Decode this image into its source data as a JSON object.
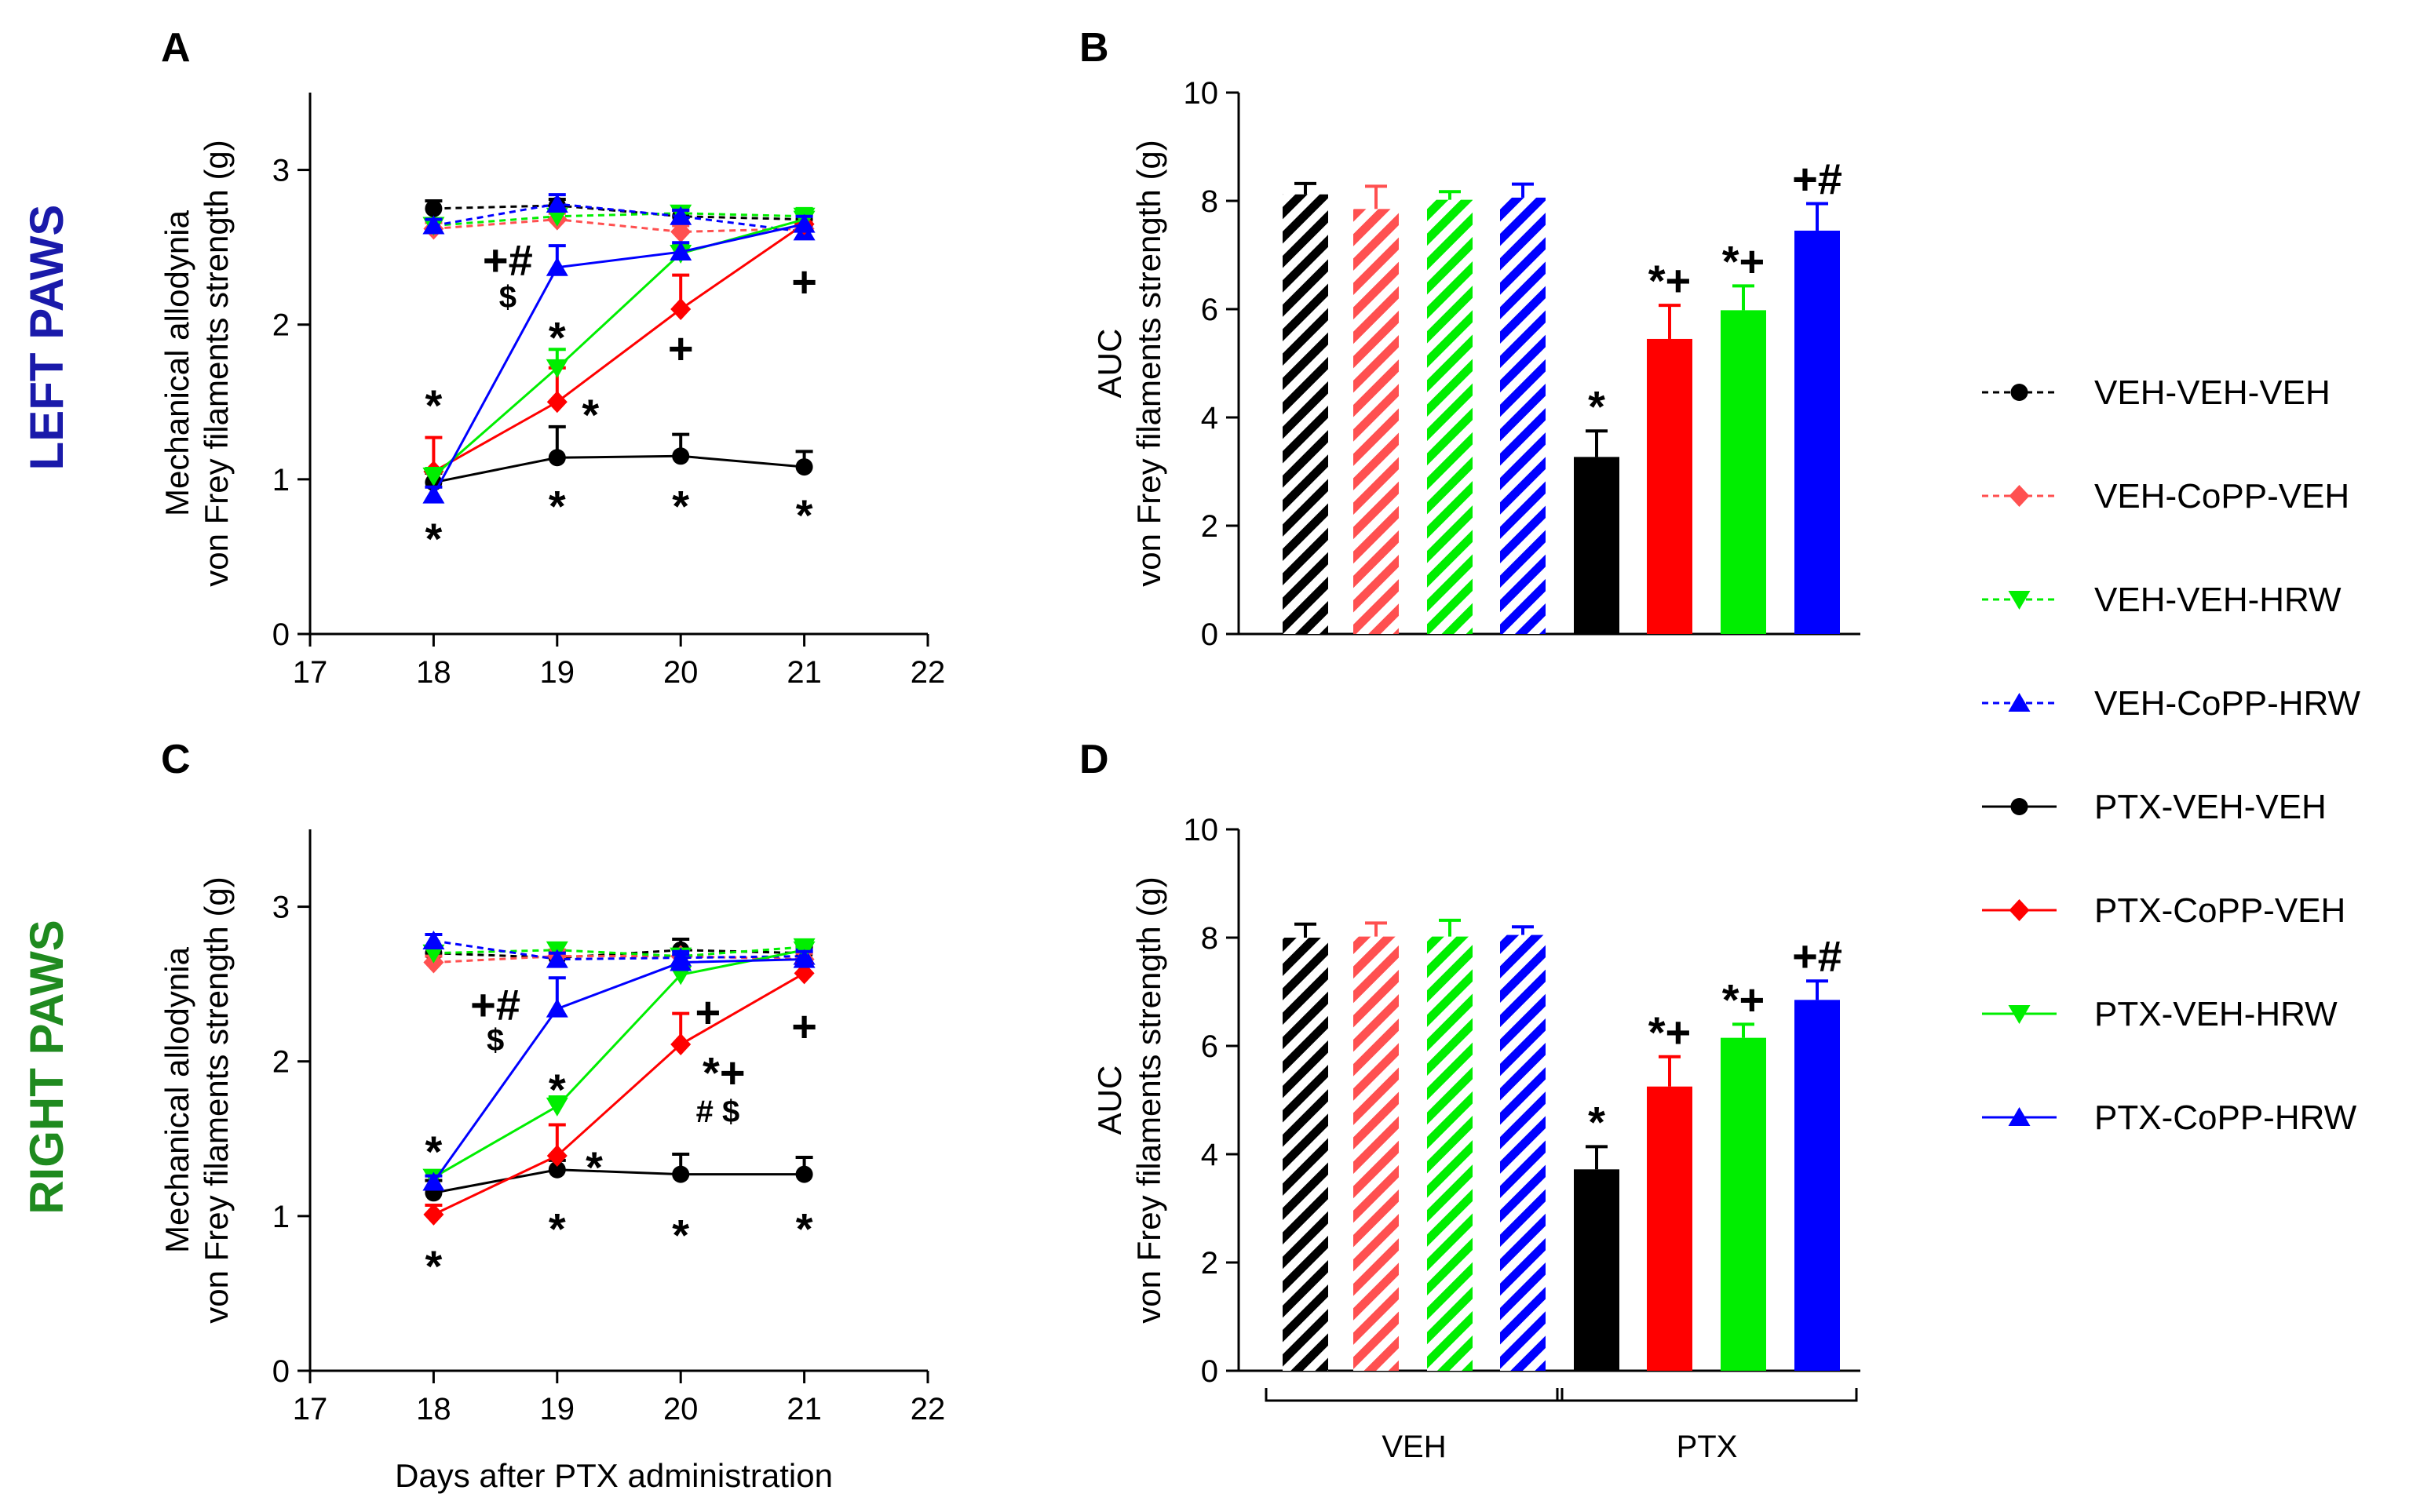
{
  "side_labels": {
    "top": "LEFT PAWS",
    "bottom": "RIGHT PAWS"
  },
  "colors": {
    "black": "#000000",
    "red": "#ff0000",
    "green": "#00ee00",
    "blue": "#0000ff",
    "red_light": "#ff5050",
    "left_label": "#1a1aaa",
    "right_label": "#1f8a1f"
  },
  "legend": [
    {
      "label": "VEH-VEH-VEH",
      "color": "#000000",
      "marker": "circle",
      "dashed": true
    },
    {
      "label": "VEH-CoPP-VEH",
      "color": "#ff5050",
      "marker": "diamond",
      "dashed": true
    },
    {
      "label": "VEH-VEH-HRW",
      "color": "#00ee00",
      "marker": "triangle-down",
      "dashed": true
    },
    {
      "label": "VEH-CoPP-HRW",
      "color": "#0000ff",
      "marker": "triangle-up",
      "dashed": true
    },
    {
      "label": "PTX-VEH-VEH",
      "color": "#000000",
      "marker": "circle",
      "dashed": false
    },
    {
      "label": "PTX-CoPP-VEH",
      "color": "#ff0000",
      "marker": "diamond",
      "dashed": false
    },
    {
      "label": "PTX-VEH-HRW",
      "color": "#00ee00",
      "marker": "triangle-down",
      "dashed": false
    },
    {
      "label": "PTX-CoPP-HRW",
      "color": "#0000ff",
      "marker": "triangle-up",
      "dashed": false
    }
  ],
  "chart_data": [
    {
      "panel": "A",
      "type": "line",
      "ylabel_line1": "Mechanical allodynia",
      "ylabel_line2": "von Frey filaments strength (g)",
      "xlabel": "",
      "xlim": [
        17,
        22
      ],
      "ylim": [
        0,
        3.5
      ],
      "xticks": [
        17,
        18,
        19,
        20,
        21,
        22
      ],
      "yticks": [
        0,
        1,
        2,
        3
      ],
      "x": [
        18,
        19,
        20,
        21
      ],
      "series": [
        {
          "name": "VEH-VEH-VEH",
          "values": [
            2.75,
            2.77,
            2.7,
            2.68
          ],
          "err": [
            0.05,
            0.04,
            0.04,
            0.04
          ]
        },
        {
          "name": "VEH-CoPP-VEH",
          "values": [
            2.62,
            2.68,
            2.6,
            2.62
          ],
          "err": [
            0.04,
            0.04,
            0.04,
            0.04
          ]
        },
        {
          "name": "VEH-VEH-HRW",
          "values": [
            2.64,
            2.7,
            2.72,
            2.7
          ],
          "err": [
            0.04,
            0.04,
            0.04,
            0.05
          ]
        },
        {
          "name": "VEH-CoPP-HRW",
          "values": [
            2.64,
            2.78,
            2.7,
            2.6
          ],
          "err": [
            0.04,
            0.06,
            0.04,
            0.04
          ]
        },
        {
          "name": "PTX-VEH-VEH",
          "values": [
            0.98,
            1.14,
            1.15,
            1.08
          ],
          "err": [
            0.06,
            0.2,
            0.14,
            0.1
          ]
        },
        {
          "name": "PTX-CoPP-VEH",
          "values": [
            1.05,
            1.5,
            2.1,
            2.65
          ],
          "err": [
            0.22,
            0.22,
            0.22,
            0.06
          ]
        },
        {
          "name": "PTX-VEH-HRW",
          "values": [
            1.02,
            1.72,
            2.46,
            2.68
          ],
          "err": [
            0.05,
            0.12,
            0.06,
            0.05
          ]
        },
        {
          "name": "PTX-CoPP-HRW",
          "values": [
            0.9,
            2.37,
            2.47,
            2.65
          ],
          "err": [
            0.05,
            0.14,
            0.06,
            0.05
          ]
        }
      ],
      "annotations": [
        {
          "text": "*",
          "x": 18,
          "y": 1.48,
          "size": "big"
        },
        {
          "text": "*",
          "x": 18,
          "y": 0.62,
          "size": "big"
        },
        {
          "text": "+#",
          "x": 18.6,
          "y": 2.42,
          "size": "big"
        },
        {
          "text": "$",
          "x": 18.6,
          "y": 2.18,
          "size": "small"
        },
        {
          "text": "*",
          "x": 19,
          "y": 1.92,
          "size": "big"
        },
        {
          "text": "*",
          "x": 19.27,
          "y": 1.42,
          "size": "big"
        },
        {
          "text": "*",
          "x": 19,
          "y": 0.83,
          "size": "big"
        },
        {
          "text": "+",
          "x": 20,
          "y": 1.85,
          "size": "big"
        },
        {
          "text": "*",
          "x": 20,
          "y": 0.83,
          "size": "big"
        },
        {
          "text": "+",
          "x": 21,
          "y": 2.28,
          "size": "big"
        },
        {
          "text": "*",
          "x": 21,
          "y": 0.77,
          "size": "big"
        }
      ]
    },
    {
      "panel": "B",
      "type": "bar",
      "ylabel_line1": "AUC",
      "ylabel_line2": "von Frey filaments strength (g)",
      "ylim": [
        0,
        10
      ],
      "yticks": [
        0,
        2,
        4,
        6,
        8,
        10
      ],
      "categories": [
        "VEH-VEH-VEH",
        "VEH-CoPP-VEH",
        "VEH-VEH-HRW",
        "VEH-CoPP-HRW",
        "PTX-VEH-VEH",
        "PTX-CoPP-VEH",
        "PTX-VEH-HRW",
        "PTX-CoPP-HRW"
      ],
      "values": [
        8.12,
        7.85,
        8.02,
        8.06,
        3.27,
        5.45,
        5.98,
        7.45
      ],
      "err": [
        0.2,
        0.42,
        0.15,
        0.25,
        0.48,
        0.62,
        0.45,
        0.5
      ],
      "hatched": [
        true,
        true,
        true,
        true,
        false,
        false,
        false,
        false
      ],
      "bar_annotations": [
        "",
        "",
        "",
        "",
        "*",
        "*+",
        "*+",
        "+#"
      ],
      "group_labels": []
    },
    {
      "panel": "C",
      "type": "line",
      "ylabel_line1": "Mechanical allodynia",
      "ylabel_line2": "von Frey filaments strength (g)",
      "xlabel": "Days after PTX administration",
      "xlim": [
        17,
        22
      ],
      "ylim": [
        0,
        3.5
      ],
      "xticks": [
        17,
        18,
        19,
        20,
        21,
        22
      ],
      "yticks": [
        0,
        1,
        2,
        3
      ],
      "x": [
        18,
        19,
        20,
        21
      ],
      "series": [
        {
          "name": "VEH-VEH-VEH",
          "values": [
            2.7,
            2.67,
            2.72,
            2.7
          ],
          "err": [
            0.04,
            0.04,
            0.07,
            0.04
          ]
        },
        {
          "name": "VEH-CoPP-VEH",
          "values": [
            2.64,
            2.68,
            2.68,
            2.66
          ],
          "err": [
            0.04,
            0.04,
            0.04,
            0.04
          ]
        },
        {
          "name": "VEH-VEH-HRW",
          "values": [
            2.7,
            2.72,
            2.68,
            2.74
          ],
          "err": [
            0.04,
            0.04,
            0.04,
            0.04
          ]
        },
        {
          "name": "VEH-CoPP-HRW",
          "values": [
            2.78,
            2.66,
            2.67,
            2.68
          ],
          "err": [
            0.04,
            0.04,
            0.04,
            0.04
          ]
        },
        {
          "name": "PTX-VEH-VEH",
          "values": [
            1.15,
            1.3,
            1.27,
            1.27
          ],
          "err": [
            0.08,
            0.06,
            0.13,
            0.11
          ]
        },
        {
          "name": "PTX-CoPP-VEH",
          "values": [
            1.01,
            1.39,
            2.11,
            2.57
          ],
          "err": [
            0.06,
            0.2,
            0.2,
            0.06
          ]
        },
        {
          "name": "PTX-VEH-HRW",
          "values": [
            1.25,
            1.71,
            2.56,
            2.72
          ],
          "err": [
            0.04,
            0.06,
            0.05,
            0.05
          ]
        },
        {
          "name": "PTX-CoPP-HRW",
          "values": [
            1.22,
            2.34,
            2.64,
            2.66
          ],
          "err": [
            0.04,
            0.2,
            0.05,
            0.05
          ]
        }
      ],
      "annotations": [
        {
          "text": "*",
          "x": 18,
          "y": 1.42,
          "size": "big"
        },
        {
          "text": "*",
          "x": 18,
          "y": 0.68,
          "size": "big"
        },
        {
          "text": "+#",
          "x": 18.5,
          "y": 2.37,
          "size": "big"
        },
        {
          "text": "$",
          "x": 18.5,
          "y": 2.14,
          "size": "small"
        },
        {
          "text": "*",
          "x": 19,
          "y": 1.82,
          "size": "big"
        },
        {
          "text": "*",
          "x": 19.3,
          "y": 1.32,
          "size": "big"
        },
        {
          "text": "*",
          "x": 19,
          "y": 0.92,
          "size": "big"
        },
        {
          "text": "+",
          "x": 20.22,
          "y": 2.32,
          "size": "big"
        },
        {
          "text": "*+",
          "x": 20.35,
          "y": 1.93,
          "size": "big"
        },
        {
          "text": "# $",
          "x": 20.3,
          "y": 1.68,
          "size": "small"
        },
        {
          "text": "*",
          "x": 20,
          "y": 0.88,
          "size": "big"
        },
        {
          "text": "+",
          "x": 21,
          "y": 2.23,
          "size": "big"
        },
        {
          "text": "*",
          "x": 21,
          "y": 0.92,
          "size": "big"
        }
      ]
    },
    {
      "panel": "D",
      "type": "bar",
      "ylabel_line1": "AUC",
      "ylabel_line2": "von Frey filaments strength (g)",
      "ylim": [
        0,
        10
      ],
      "yticks": [
        0,
        2,
        4,
        6,
        8,
        10
      ],
      "categories": [
        "VEH-VEH-VEH",
        "VEH-CoPP-VEH",
        "VEH-VEH-HRW",
        "VEH-CoPP-HRW",
        "PTX-VEH-VEH",
        "PTX-CoPP-VEH",
        "PTX-VEH-HRW",
        "PTX-CoPP-HRW"
      ],
      "values": [
        8.0,
        8.02,
        8.02,
        8.05,
        3.72,
        5.25,
        6.15,
        6.85
      ],
      "err": [
        0.25,
        0.25,
        0.3,
        0.15,
        0.42,
        0.55,
        0.25,
        0.35
      ],
      "hatched": [
        true,
        true,
        true,
        true,
        false,
        false,
        false,
        false
      ],
      "bar_annotations": [
        "",
        "",
        "",
        "",
        "*",
        "*+",
        "*+",
        "+#"
      ],
      "group_labels": [
        "VEH",
        "PTX"
      ]
    }
  ]
}
